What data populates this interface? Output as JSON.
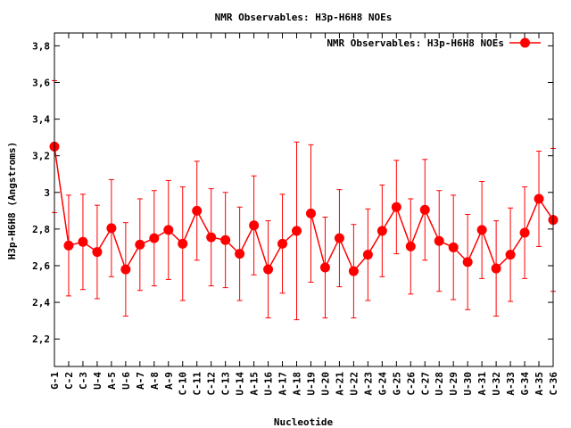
{
  "chart_data": {
    "type": "line",
    "title": "NMR Observables: H3p-H6H8 NOEs",
    "xlabel": "Nucleotide",
    "ylabel": "H3p-H6H8 (Angstroms)",
    "ylim": [
      2.05,
      3.87
    ],
    "yticks": [
      "2,2",
      "2,4",
      "2,6",
      "2,8",
      "3",
      "3,2",
      "3,4",
      "3,6",
      "3,8"
    ],
    "ytick_values": [
      2.2,
      2.4,
      2.6,
      2.8,
      3.0,
      3.2,
      3.4,
      3.6,
      3.8
    ],
    "grid": false,
    "legend_position": "top-right",
    "color": "#ff0000",
    "categories": [
      "G-1",
      "C-2",
      "C-3",
      "U-4",
      "A-5",
      "U-6",
      "A-7",
      "A-8",
      "A-9",
      "C-10",
      "C-11",
      "C-12",
      "C-13",
      "U-14",
      "A-15",
      "U-16",
      "A-17",
      "A-18",
      "U-19",
      "U-20",
      "A-21",
      "U-22",
      "A-23",
      "G-24",
      "G-25",
      "C-26",
      "C-27",
      "U-28",
      "U-29",
      "U-30",
      "A-31",
      "U-32",
      "A-33",
      "G-34",
      "A-35",
      "C-36"
    ],
    "series": [
      {
        "name": "NMR Observables: H3p-H6H8 NOEs",
        "segments": [
          {
            "start": 1,
            "values": [
              3.25,
              2.71,
              2.73,
              2.675,
              2.805,
              2.58,
              2.715,
              2.75,
              2.795,
              2.72,
              2.9,
              2.755,
              2.74,
              2.665,
              2.82,
              2.58,
              2.72,
              2.79
            ],
            "errors": [
              0.36,
              0.275,
              0.26,
              0.255,
              0.265,
              0.255,
              0.25,
              0.26,
              0.27,
              0.31,
              0.27,
              0.265,
              0.26,
              0.255,
              0.27,
              0.265,
              0.27,
              0.485
            ]
          },
          {
            "start": 19,
            "values": [
              2.885,
              2.59,
              2.75,
              2.57,
              2.66,
              2.79,
              2.92,
              2.705,
              2.905,
              2.735,
              2.7,
              2.62,
              2.795,
              2.585,
              2.66,
              2.78,
              2.965,
              2.85
            ],
            "errors": [
              0.375,
              0.275,
              0.265,
              0.255,
              0.25,
              0.25,
              0.255,
              0.26,
              0.275,
              0.275,
              0.285,
              0.26,
              0.265,
              0.26,
              0.255,
              0.25,
              0.26,
              0.39
            ]
          }
        ]
      }
    ]
  }
}
